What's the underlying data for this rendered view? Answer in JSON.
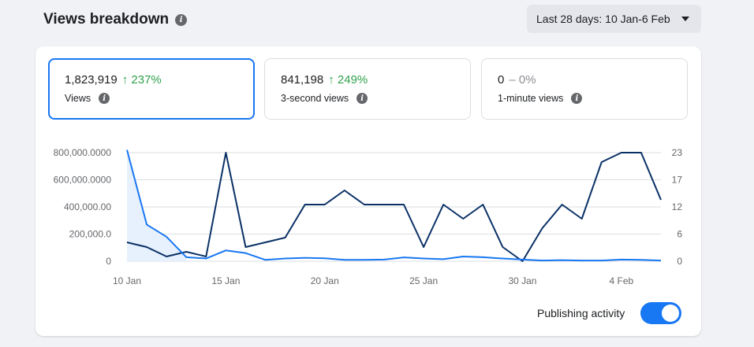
{
  "header": {
    "title": "Views breakdown",
    "date_range": "Last 28 days: 10 Jan-6 Feb"
  },
  "metrics": [
    {
      "value": "1,823,919",
      "change": "↑ 237%",
      "trend": "up",
      "label": "Views"
    },
    {
      "value": "841,198",
      "change": "↑ 249%",
      "trend": "up",
      "label": "3-second views"
    },
    {
      "value": "0",
      "change": "– 0%",
      "trend": "flat",
      "label": "1-minute views"
    }
  ],
  "publishing": {
    "label": "Publishing activity",
    "enabled": true
  },
  "colors": {
    "views": "#1877f2",
    "activity": "#0a3166",
    "fill": "#e7f0fd",
    "accent": "#1877f2",
    "positive": "#31a24c"
  },
  "chart_data": {
    "type": "line",
    "x": [
      "10 Jan",
      "11 Jan",
      "12 Jan",
      "13 Jan",
      "14 Jan",
      "15 Jan",
      "16 Jan",
      "17 Jan",
      "18 Jan",
      "19 Jan",
      "20 Jan",
      "21 Jan",
      "22 Jan",
      "23 Jan",
      "24 Jan",
      "25 Jan",
      "26 Jan",
      "27 Jan",
      "28 Jan",
      "29 Jan",
      "30 Jan",
      "31 Jan",
      "1 Feb",
      "2 Feb",
      "3 Feb",
      "4 Feb",
      "5 Feb",
      "6 Feb"
    ],
    "x_tick_labels": [
      "10 Jan",
      "15 Jan",
      "20 Jan",
      "25 Jan",
      "30 Jan",
      "4 Feb"
    ],
    "y_left_ticks": [
      "0",
      "200,000.0",
      "400,000.00",
      "600,000.0000",
      "800,000.0000"
    ],
    "y_left_range": [
      0,
      800000
    ],
    "y_right_ticks": [
      "0",
      "6",
      "12",
      "17",
      "23"
    ],
    "y_right_range": [
      0,
      23
    ],
    "series": [
      {
        "axis": "left",
        "values": [
          820000,
          270000,
          180000,
          30000,
          20000,
          80000,
          60000,
          10000,
          20000,
          25000,
          22000,
          10000,
          10000,
          12000,
          28000,
          20000,
          15000,
          35000,
          30000,
          20000,
          12000,
          5000,
          8000,
          5000,
          5000,
          12000,
          10000,
          5000
        ]
      },
      {
        "axis": "right",
        "values": [
          4,
          3,
          1,
          2,
          1,
          23,
          3,
          4,
          5,
          12,
          12,
          15,
          12,
          12,
          12,
          3,
          12,
          9,
          12,
          3,
          0,
          7,
          12,
          9,
          21,
          23,
          23,
          13
        ]
      }
    ]
  }
}
